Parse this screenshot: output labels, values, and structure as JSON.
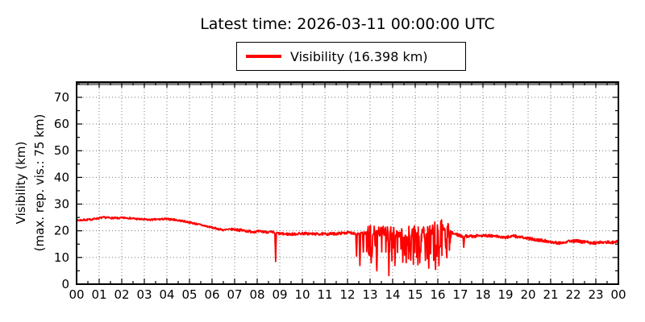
{
  "title": "Latest time: 2026-03-11 00:00:00 UTC",
  "legend": {
    "label": "Visibility (16.398 km)",
    "line_color": "#ff0000"
  },
  "ylabel_line1": "Visibility (km)",
  "ylabel_line2": "(max. rep. vis.: 75 km)",
  "colors": {
    "series": "#ff0000",
    "max_line": "#7f7f7f",
    "grid": "#777777",
    "axis": "#000000",
    "background": "#ffffff"
  },
  "chart_data": {
    "type": "line",
    "title": "Latest time: 2026-03-11 00:00:00 UTC",
    "xlabel": "",
    "ylabel": "Visibility (km) (max. rep. vis.: 75 km)",
    "x_tick_labels": [
      "00",
      "01",
      "02",
      "03",
      "04",
      "05",
      "06",
      "07",
      "08",
      "09",
      "10",
      "11",
      "12",
      "13",
      "14",
      "15",
      "16",
      "17",
      "18",
      "19",
      "20",
      "21",
      "22",
      "23",
      "00"
    ],
    "y_ticks": [
      0,
      10,
      20,
      30,
      40,
      50,
      60,
      70
    ],
    "xlim_hours": [
      0,
      24
    ],
    "ylim": [
      0,
      75.7
    ],
    "grid": "dotted",
    "legend_position": "upper center above axes",
    "max_reported_visibility_km": 75,
    "series": [
      {
        "name": "Visibility (16.398 km)",
        "color": "#ff0000",
        "latest_value_km": 16.398,
        "hours": [
          0,
          1,
          2,
          3,
          4,
          5,
          6,
          7,
          8,
          9,
          10,
          11,
          12,
          13,
          14,
          15,
          16,
          17,
          18,
          19,
          20,
          21,
          22,
          23,
          24
        ],
        "hourly_values_km": [
          23.9,
          24.8,
          24.9,
          24.2,
          24.3,
          23.2,
          21.0,
          20.5,
          19.6,
          18.9,
          19.0,
          18.8,
          19.3,
          19.3,
          18.6,
          18.6,
          20.6,
          18.1,
          18.3,
          17.4,
          17.0,
          15.8,
          16.3,
          15.4,
          16.4
        ],
        "trend_anchors": [
          [
            0,
            23.9
          ],
          [
            0.6,
            24.2
          ],
          [
            1.2,
            25.0
          ],
          [
            1.8,
            24.7
          ],
          [
            2.2,
            24.9
          ],
          [
            2.7,
            24.4
          ],
          [
            3.2,
            24.1
          ],
          [
            3.9,
            24.4
          ],
          [
            4.3,
            24.2
          ],
          [
            4.8,
            23.5
          ],
          [
            5.2,
            22.8
          ],
          [
            5.7,
            21.8
          ],
          [
            6.1,
            21.0
          ],
          [
            6.5,
            20.3
          ],
          [
            6.9,
            20.6
          ],
          [
            7.3,
            20.2
          ],
          [
            7.7,
            19.7
          ],
          [
            8.2,
            19.7
          ],
          [
            8.6,
            19.5
          ],
          [
            9.0,
            18.9
          ],
          [
            9.5,
            18.7
          ],
          [
            10.0,
            19.0
          ],
          [
            10.5,
            18.8
          ],
          [
            11.0,
            18.8
          ],
          [
            11.5,
            18.9
          ],
          [
            12.0,
            19.3
          ],
          [
            12.5,
            19.0
          ],
          [
            13.0,
            19.3
          ],
          [
            13.5,
            18.8
          ],
          [
            14.0,
            18.6
          ],
          [
            14.5,
            18.4
          ],
          [
            15.0,
            18.6
          ],
          [
            15.5,
            18.4
          ],
          [
            16.0,
            20.6
          ],
          [
            16.3,
            21.3
          ],
          [
            16.6,
            19.3
          ],
          [
            17.0,
            18.1
          ],
          [
            17.5,
            17.9
          ],
          [
            18.0,
            18.3
          ],
          [
            18.5,
            18.0
          ],
          [
            19.0,
            17.4
          ],
          [
            19.3,
            18.2
          ],
          [
            19.7,
            17.5
          ],
          [
            20.0,
            17.1
          ],
          [
            20.5,
            16.5
          ],
          [
            21.0,
            15.9
          ],
          [
            21.4,
            15.4
          ],
          [
            21.8,
            16.2
          ],
          [
            22.2,
            16.1
          ],
          [
            22.6,
            15.7
          ],
          [
            23.0,
            15.4
          ],
          [
            23.4,
            15.9
          ],
          [
            23.7,
            15.5
          ],
          [
            24,
            16.398
          ]
        ],
        "noise_segments": [
          [
            0,
            7,
            0.35
          ],
          [
            7,
            12.85,
            0.5
          ],
          [
            12.85,
            16.6,
            1.1
          ],
          [
            16.6,
            24.01,
            0.55
          ]
        ],
        "spike_zone": {
          "start": 12.85,
          "end": 16.6,
          "down_prob": 0.3,
          "down_extra_max": 11,
          "up_prob": 0.2,
          "up_extra_max": 2.5
        },
        "dips": [
          [
            8.81,
            8.5
          ],
          [
            12.4,
            10.5
          ],
          [
            12.55,
            7.0
          ],
          [
            12.7,
            12.0
          ],
          [
            13.05,
            8.0
          ],
          [
            13.3,
            5.0
          ],
          [
            13.84,
            3.2
          ],
          [
            14.1,
            7.0
          ],
          [
            14.45,
            8.2
          ],
          [
            14.8,
            9.0
          ],
          [
            15.2,
            8.0
          ],
          [
            15.6,
            6.0
          ],
          [
            15.9,
            5.5
          ],
          [
            16.05,
            7.0
          ],
          [
            16.35,
            13.5
          ],
          [
            17.15,
            13.8
          ]
        ],
        "seed": 7,
        "step_minutes": 1
      }
    ]
  }
}
